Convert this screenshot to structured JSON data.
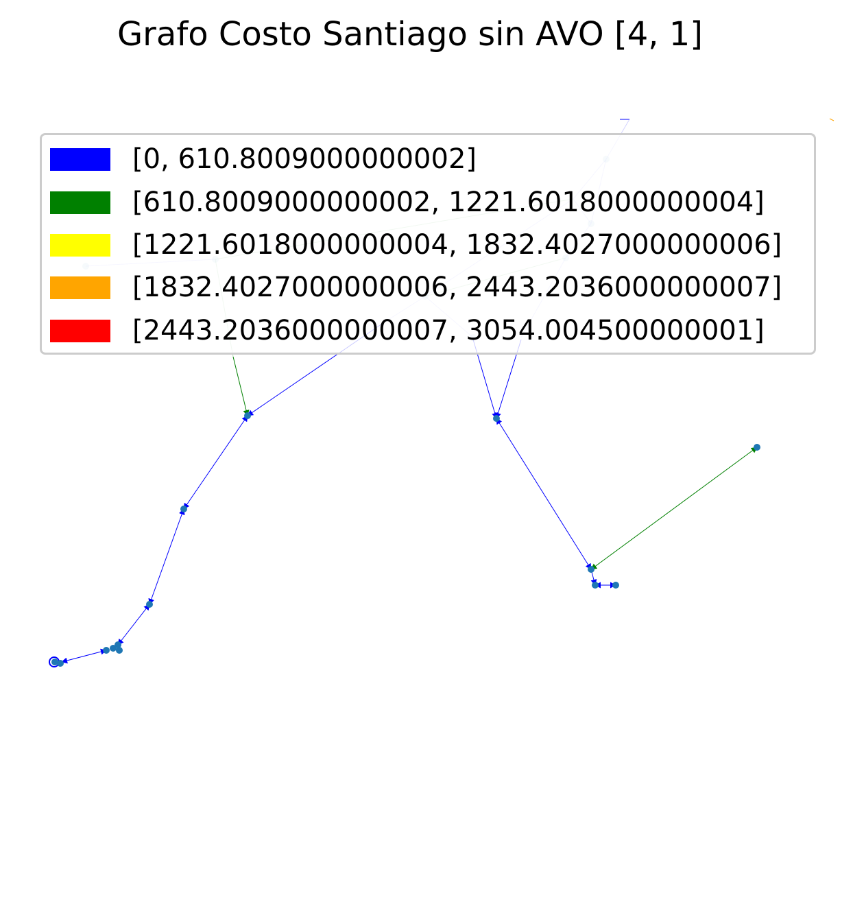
{
  "title": "Grafo Costo Santiago sin AVO [4, 1]",
  "legend": {
    "items": [
      {
        "label": "[0, 610.8009000000002]",
        "color": "#0000ff"
      },
      {
        "label": "[610.8009000000002, 1221.6018000000004]",
        "color": "#008000"
      },
      {
        "label": "[1221.6018000000004, 1832.4027000000006]",
        "color": "#ffff00"
      },
      {
        "label": "[1832.4027000000006, 2443.2036000000007]",
        "color": "#ffa500"
      },
      {
        "label": "[2443.2036000000007, 3054.004500000001]",
        "color": "#ff0000"
      }
    ]
  },
  "colors": {
    "node": "#1f77b4"
  }
}
